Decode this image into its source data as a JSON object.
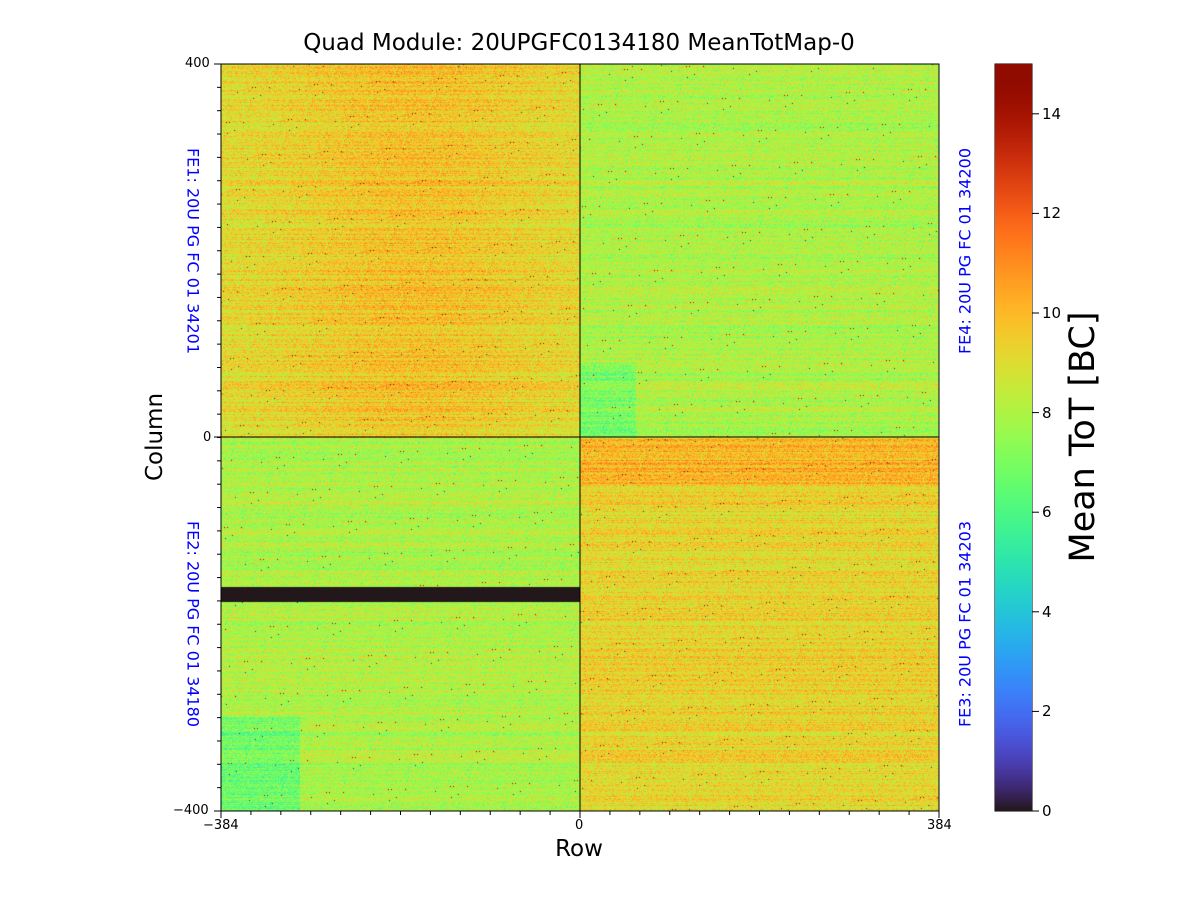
{
  "chart_data": {
    "type": "heatmap",
    "title": "Quad Module: 20UPGFC0134180 MeanTotMap-0",
    "xlabel": "Row",
    "ylabel": "Column",
    "xlim": [
      -384,
      384
    ],
    "ylim": [
      -400,
      400
    ],
    "x_ticks": [
      "−384",
      "0",
      "384"
    ],
    "y_ticks": [
      "400",
      "0",
      "−400"
    ],
    "colorbar": {
      "label": "Mean ToT [BC]",
      "range": [
        0,
        15
      ],
      "ticks": [
        "0",
        "2",
        "4",
        "6",
        "8",
        "10",
        "12",
        "14"
      ],
      "colormap": "turbo"
    },
    "front_ends": [
      {
        "label": "FE1: 20U PG FC 01 34201",
        "quadrant": "top-left",
        "mean_tot": 9.0
      },
      {
        "label": "FE4: 20U PG FC 01 34200",
        "quadrant": "top-right",
        "mean_tot": 8.0
      },
      {
        "label": "FE2: 20U PG FC 01 34180",
        "quadrant": "bottom-left",
        "mean_tot": 8.0
      },
      {
        "label": "FE3: 20U PG FC 01 34203",
        "quadrant": "bottom-right",
        "mean_tot": 9.3
      }
    ],
    "dead_band": {
      "quadrant": "bottom-left",
      "y_range": [
        -176,
        -160
      ],
      "x_range": [
        -384,
        0
      ],
      "value": 0
    },
    "fe_label_color": "#0000ff"
  }
}
